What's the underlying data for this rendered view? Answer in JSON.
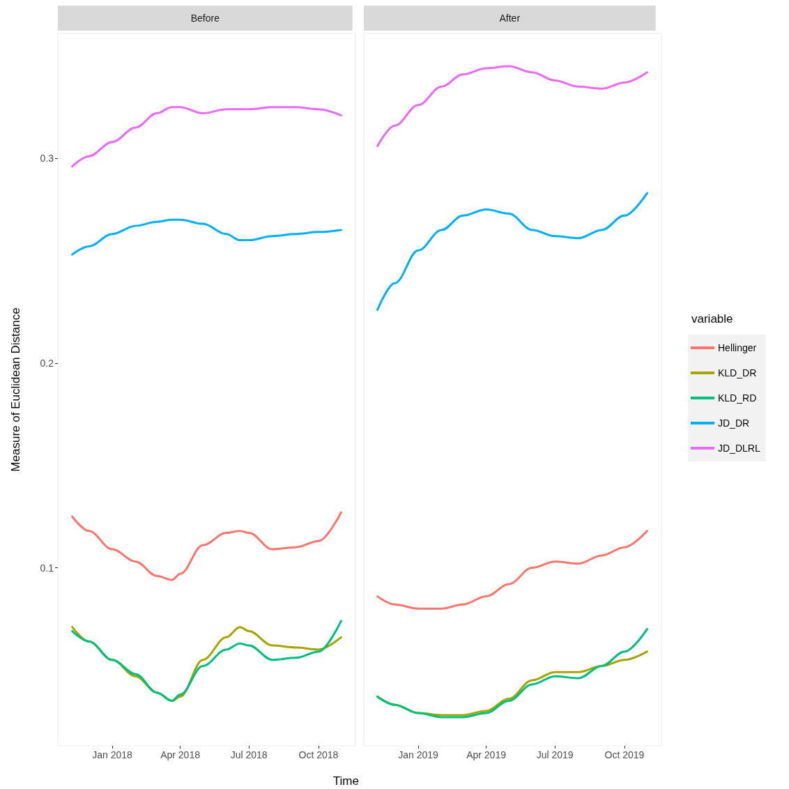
{
  "chart_data": [
    {
      "type": "line",
      "title": "Before",
      "ylabel": "Measure of Euclidean Distance",
      "xlabel": "Time",
      "legend": false,
      "grid": false,
      "marker": "none",
      "x": [
        "2017-11-09",
        "2017-12-01",
        "2018-01-01",
        "2018-02-01",
        "2018-03-01",
        "2018-03-21",
        "2018-04-01",
        "2018-05-01",
        "2018-06-01",
        "2018-06-19",
        "2018-07-01",
        "2018-08-01",
        "2018-09-01",
        "2018-10-01",
        "2018-10-31"
      ],
      "xlim": [
        "2017-10-21",
        "2018-11-19"
      ],
      "xticks": [
        {
          "value": "2018-01-01",
          "label": "Jan 2018"
        },
        {
          "value": "2018-04-01",
          "label": "Apr 2018"
        },
        {
          "value": "2018-07-01",
          "label": "Jul 2018"
        },
        {
          "value": "2018-10-01",
          "label": "Oct 2018"
        }
      ],
      "ylim": [
        0.013,
        0.361
      ],
      "yticks": [
        0.1,
        0.2,
        0.3
      ],
      "series": [
        {
          "color": "#f8766d",
          "values": [
            0.125,
            0.118,
            0.109,
            0.103,
            0.096,
            0.094,
            0.097,
            0.111,
            0.117,
            0.118,
            0.117,
            0.109,
            0.11,
            0.113,
            0.127
          ]
        },
        {
          "color": "#a3a500",
          "values": [
            0.071,
            0.064,
            0.055,
            0.047,
            0.039,
            0.035,
            0.037,
            0.055,
            0.066,
            0.071,
            0.069,
            0.062,
            0.061,
            0.06,
            0.066
          ]
        },
        {
          "color": "#00bf7d",
          "values": [
            0.069,
            0.064,
            0.055,
            0.048,
            0.039,
            0.035,
            0.038,
            0.052,
            0.06,
            0.063,
            0.062,
            0.055,
            0.056,
            0.059,
            0.074
          ]
        },
        {
          "color": "#00b0f6",
          "values": [
            0.253,
            0.257,
            0.263,
            0.267,
            0.269,
            0.27,
            0.27,
            0.268,
            0.263,
            0.26,
            0.26,
            0.262,
            0.263,
            0.264,
            0.265
          ]
        },
        {
          "color": "#e76bf3",
          "values": [
            0.296,
            0.301,
            0.308,
            0.315,
            0.322,
            0.325,
            0.325,
            0.322,
            0.324,
            0.324,
            0.324,
            0.325,
            0.325,
            0.324,
            0.321
          ]
        }
      ]
    },
    {
      "type": "line",
      "title": "After",
      "legend_title": "variable",
      "legend": "right",
      "grid": false,
      "marker": "none",
      "tick_labels": "x",
      "x": [
        "2018-11-08",
        "2018-12-01",
        "2019-01-01",
        "2019-02-01",
        "2019-03-01",
        "2019-04-01",
        "2019-05-01",
        "2019-06-01",
        "2019-07-01",
        "2019-08-01",
        "2019-09-01",
        "2019-10-01",
        "2019-10-31"
      ],
      "xlim": [
        "2018-10-21",
        "2019-11-19"
      ],
      "xticks": [
        {
          "value": "2019-01-01",
          "label": "Jan 2019"
        },
        {
          "value": "2019-04-01",
          "label": "Apr 2019"
        },
        {
          "value": "2019-07-01",
          "label": "Jul 2019"
        },
        {
          "value": "2019-10-01",
          "label": "Oct 2019"
        }
      ],
      "ylim": [
        0.013,
        0.361
      ],
      "yticks": [
        0.1,
        0.2,
        0.3
      ],
      "series": [
        {
          "name": "Hellinger",
          "color": "#f8766d",
          "values": [
            0.086,
            0.082,
            0.08,
            0.08,
            0.082,
            0.086,
            0.092,
            0.1,
            0.103,
            0.102,
            0.106,
            0.11,
            0.118
          ]
        },
        {
          "name": "KLD_DR",
          "color": "#a3a500",
          "values": [
            0.037,
            0.033,
            0.029,
            0.028,
            0.028,
            0.03,
            0.036,
            0.045,
            0.049,
            0.049,
            0.052,
            0.055,
            0.059
          ]
        },
        {
          "name": "KLD_RD",
          "color": "#00bf7d",
          "values": [
            0.037,
            0.033,
            0.029,
            0.027,
            0.027,
            0.029,
            0.035,
            0.043,
            0.047,
            0.046,
            0.052,
            0.059,
            0.07
          ]
        },
        {
          "name": "JD_DR",
          "color": "#00b0f6",
          "values": [
            0.226,
            0.239,
            0.255,
            0.265,
            0.272,
            0.275,
            0.273,
            0.265,
            0.262,
            0.261,
            0.265,
            0.272,
            0.283
          ]
        },
        {
          "name": "JD_DLRL",
          "color": "#e76bf3",
          "values": [
            0.306,
            0.316,
            0.326,
            0.335,
            0.341,
            0.344,
            0.345,
            0.342,
            0.338,
            0.335,
            0.334,
            0.337,
            0.342
          ]
        }
      ]
    }
  ]
}
